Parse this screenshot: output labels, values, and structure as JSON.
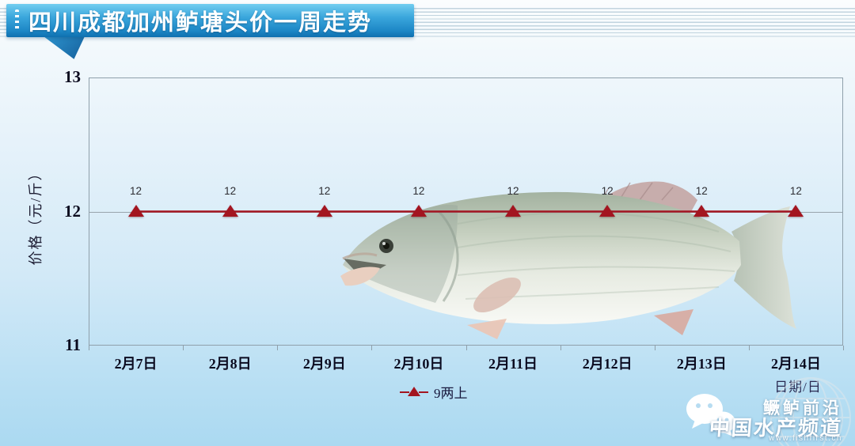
{
  "banner": {
    "title_prefix_icon": "dotted-line-icon"
  },
  "chart_data": {
    "type": "line",
    "title": "四川成都加州鲈塘头价一周走势",
    "categories": [
      "2月7日",
      "2月8日",
      "2月9日",
      "2月10日",
      "2月11日",
      "2月12日",
      "2月13日",
      "2月14日"
    ],
    "series": [
      {
        "name": "9两上",
        "marker": "triangle",
        "color": "#a31520",
        "values": [
          12,
          12,
          12,
          12,
          12,
          12,
          12,
          12
        ]
      }
    ],
    "xlabel": "日期/日",
    "ylabel": "价格（元/斤）",
    "ylim": [
      11,
      13
    ],
    "yticks": [
      13,
      12,
      11
    ],
    "grid": "horizontal-at-interior-ticks",
    "legend_position": "bottom-center",
    "data_labels": true,
    "background_image": "largemouth-bass-photo"
  },
  "watermark": {
    "brand": "鳜鲈前沿",
    "channel": "中国水产频道",
    "url": "www.fishfirst.cn",
    "icons": [
      "wechat-icon",
      "globe-icon"
    ]
  },
  "colors": {
    "series_line": "#a31520",
    "banner_top": "#72cdf0",
    "banner_bottom": "#0f6fae",
    "plot_border": "#8fa0ab",
    "grid_line": "#98a4ac",
    "tick_label": "#0a0a1e",
    "background_bottom": "#abd9f1"
  }
}
